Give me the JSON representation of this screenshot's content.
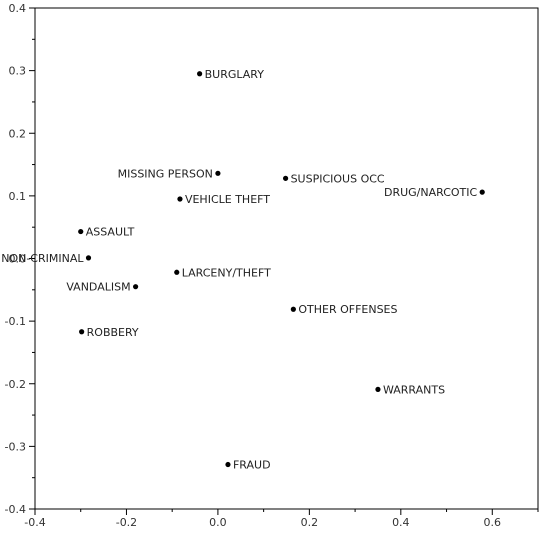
{
  "chart_data": {
    "type": "scatter",
    "title": "",
    "xlabel": "",
    "ylabel": "",
    "xlim": [
      -0.4,
      0.7
    ],
    "ylim": [
      -0.4,
      0.4
    ],
    "grid": false,
    "x_ticks": [
      -0.4,
      -0.2,
      0.0,
      0.2,
      0.4,
      0.6
    ],
    "x_tick_labels": [
      "-0.4",
      "-0.2",
      "0.0",
      "0.2",
      "0.4",
      "0.6"
    ],
    "y_ticks": [
      -0.4,
      -0.3,
      -0.2,
      -0.1,
      0.0,
      0.1,
      0.2,
      0.3,
      0.4
    ],
    "y_tick_labels": [
      "-0.4",
      "-0.3",
      "-0.2",
      "-0.1",
      "0.0",
      "0.1",
      "0.2",
      "0.3",
      "0.4"
    ],
    "points": [
      {
        "label": "BURGLARY",
        "x": -0.04,
        "y": 0.295,
        "label_side": "right"
      },
      {
        "label": "MISSING PERSON",
        "x": 0.0,
        "y": 0.136,
        "label_side": "left"
      },
      {
        "label": "SUSPICIOUS OCC",
        "x": 0.148,
        "y": 0.128,
        "label_side": "right"
      },
      {
        "label": "DRUG/NARCOTIC",
        "x": 0.578,
        "y": 0.106,
        "label_side": "left"
      },
      {
        "label": "VEHICLE THEFT",
        "x": -0.083,
        "y": 0.095,
        "label_side": "right"
      },
      {
        "label": "ASSAULT",
        "x": -0.3,
        "y": 0.043,
        "label_side": "right"
      },
      {
        "label": "NON-CRIMINAL",
        "x": -0.283,
        "y": 0.001,
        "label_side": "left"
      },
      {
        "label": "LARCENY/THEFT",
        "x": -0.09,
        "y": -0.022,
        "label_side": "right"
      },
      {
        "label": "VANDALISM",
        "x": -0.18,
        "y": -0.045,
        "label_side": "left"
      },
      {
        "label": "OTHER OFFENSES",
        "x": 0.165,
        "y": -0.081,
        "label_side": "right"
      },
      {
        "label": "ROBBERY",
        "x": -0.298,
        "y": -0.117,
        "label_side": "right"
      },
      {
        "label": "WARRANTS",
        "x": 0.35,
        "y": -0.209,
        "label_side": "right"
      },
      {
        "label": "FRAUD",
        "x": 0.022,
        "y": -0.329,
        "label_side": "right"
      }
    ]
  }
}
